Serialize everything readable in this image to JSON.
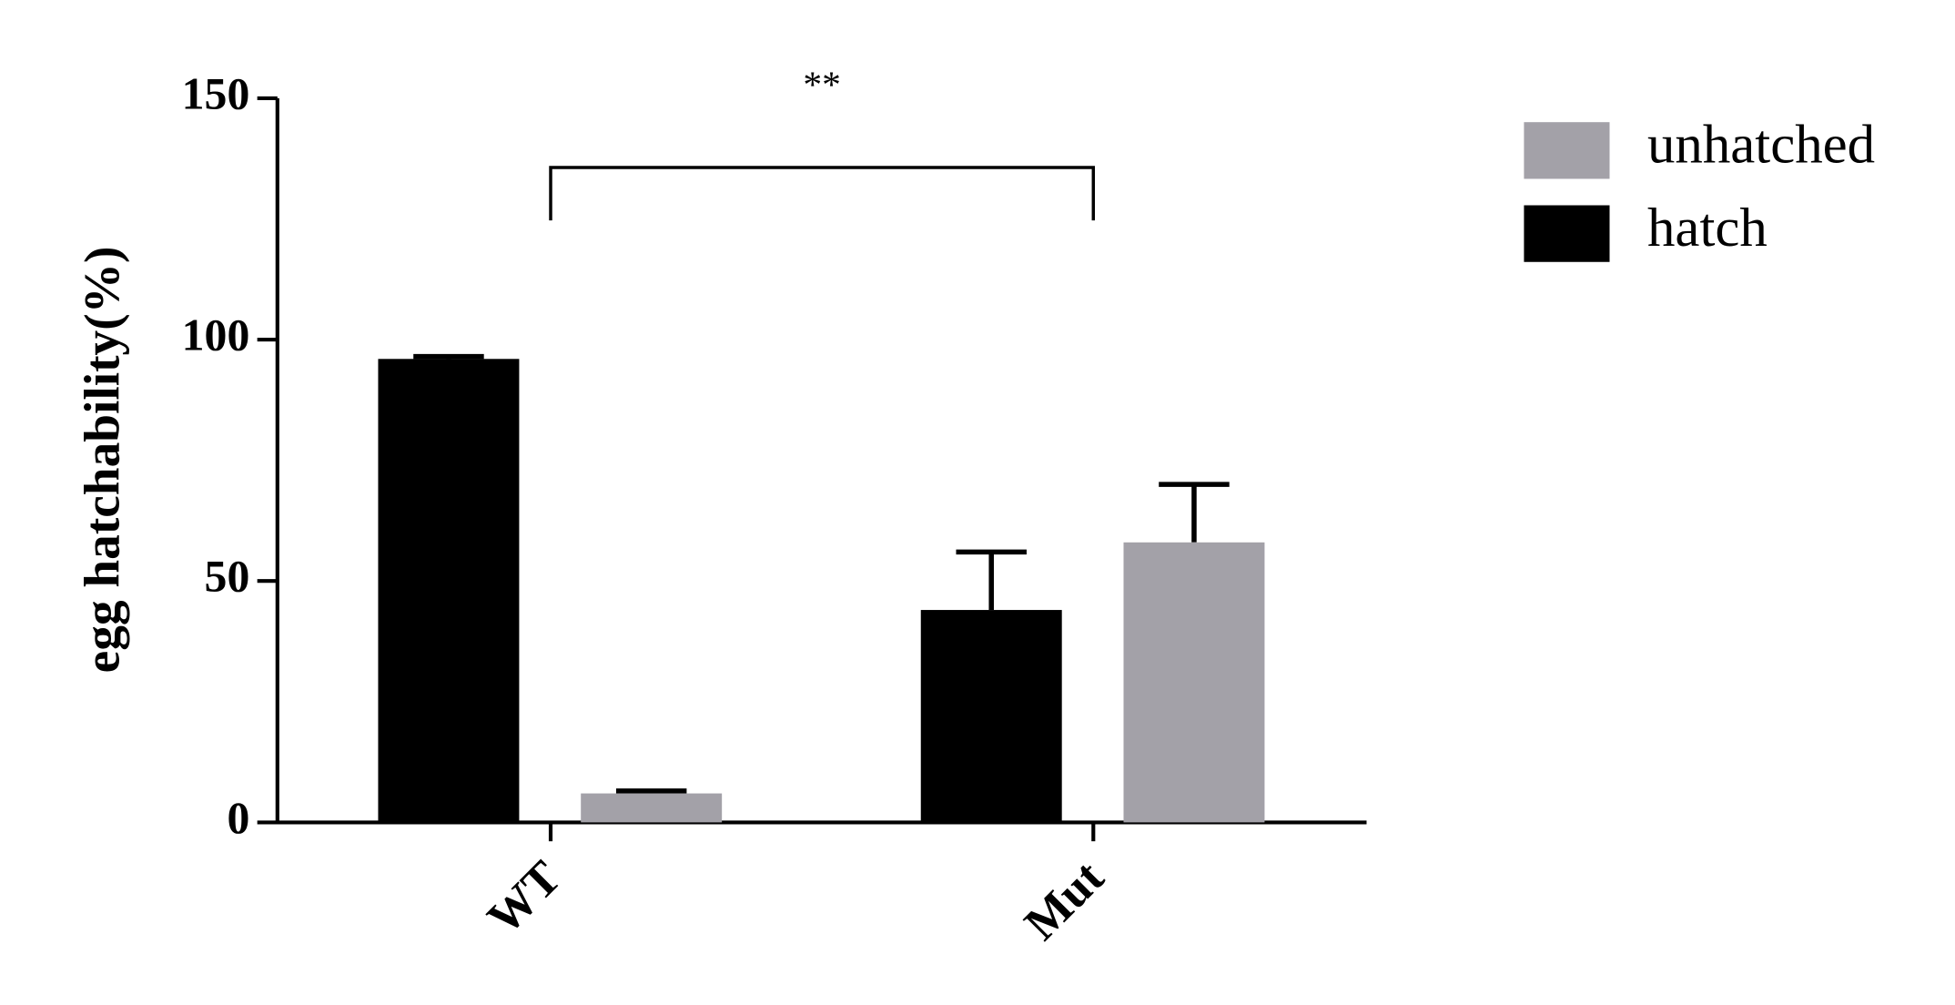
{
  "chart_data": {
    "type": "bar",
    "ylabel": "egg hatchability(%)",
    "annotation": "**",
    "categories": [
      "WT",
      "Mut"
    ],
    "series": [
      {
        "name": "hatch",
        "color": "#000000",
        "values": [
          96,
          44
        ],
        "errors": [
          0.5,
          12
        ]
      },
      {
        "name": "unhatched",
        "color": "#a3a1a8",
        "values": [
          6,
          58
        ],
        "errors": [
          0.5,
          12
        ]
      }
    ],
    "ylim": [
      0,
      150
    ],
    "yticks": [
      0,
      50,
      100,
      150
    ]
  }
}
